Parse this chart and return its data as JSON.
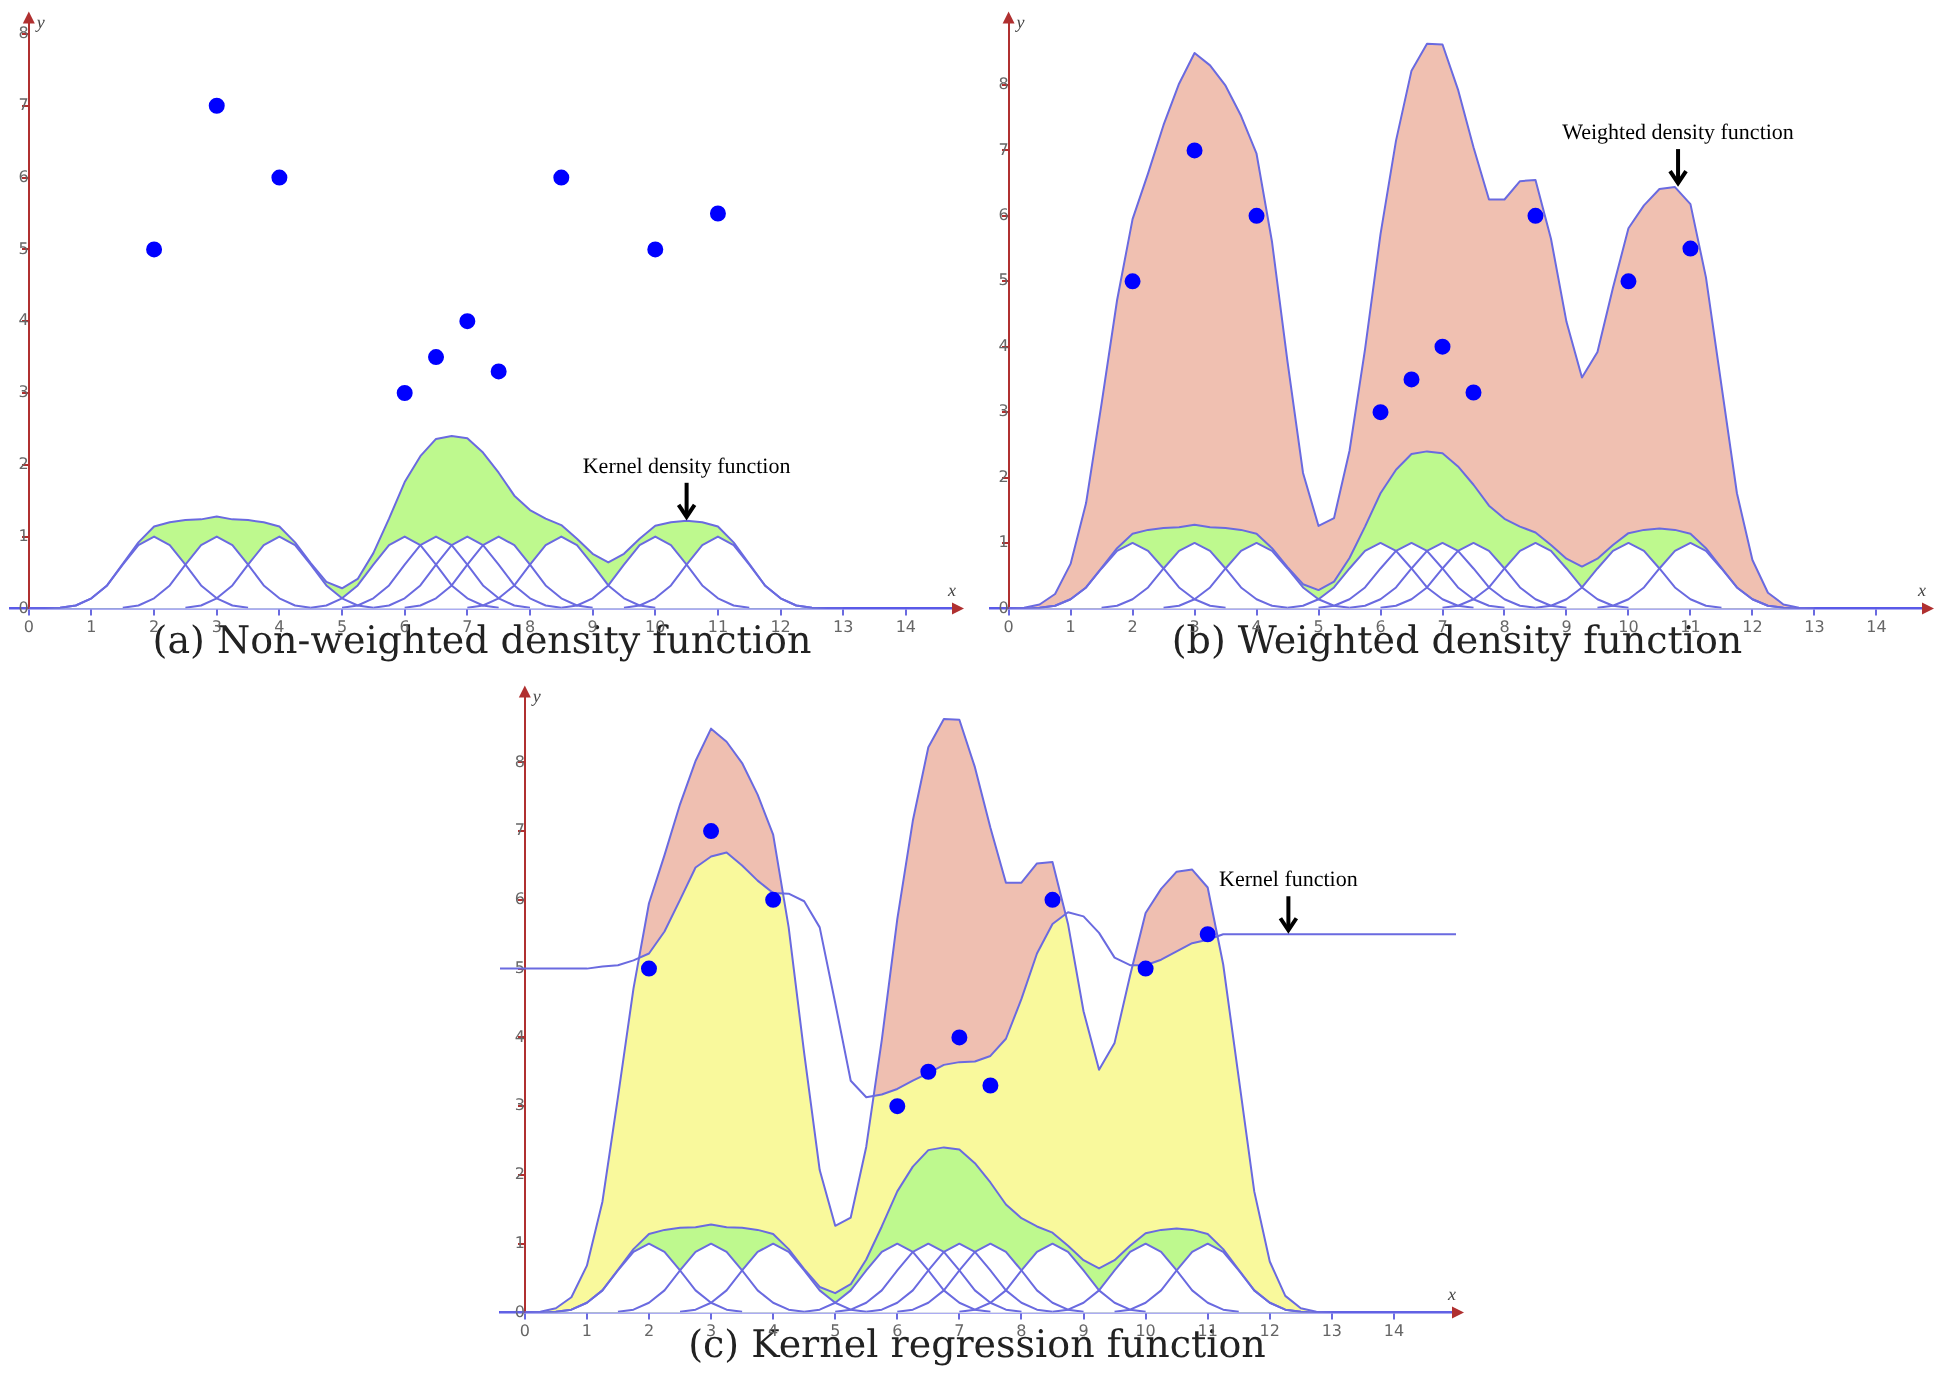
{
  "chart_data": [
    {
      "type": "line",
      "title": "(a) Non-weighted density function",
      "xlabel": "x",
      "ylabel": "y",
      "xlim": [
        -0.3,
        14.8
      ],
      "ylim": [
        0,
        8.2
      ],
      "xticks": [
        0,
        1,
        2,
        3,
        4,
        5,
        6,
        7,
        8,
        9,
        10,
        11,
        12,
        13,
        14
      ],
      "yticks": [
        0,
        1,
        2,
        3,
        4,
        5,
        6,
        7,
        8
      ],
      "grid": false,
      "legend": false,
      "annotations": [
        {
          "text": "Kernel density function",
          "x": 10.5,
          "y": 1.22
        }
      ],
      "series": [
        {
          "type": "scatter",
          "color": "#0000ff",
          "marker": "circle",
          "x": [
            2,
            3,
            4,
            6,
            6.5,
            7,
            7.5,
            8.5,
            10,
            11
          ],
          "values": [
            5,
            7,
            6,
            3,
            3.5,
            4,
            3.3,
            6,
            5,
            5.5
          ]
        },
        {
          "type": "area",
          "color": "#ffffff",
          "x": [
            0.5,
            0.75,
            1,
            1.25,
            1.5,
            1.75,
            2,
            2.25,
            2.5,
            2.75,
            3,
            3.25,
            3.5
          ],
          "values": [
            0.01,
            0.04,
            0.14,
            0.32,
            0.61,
            0.88,
            1,
            0.88,
            0.61,
            0.32,
            0.14,
            0.04,
            0.01
          ]
        },
        {
          "type": "area",
          "color": "#ffffff",
          "x": [
            1.5,
            1.75,
            2,
            2.25,
            2.5,
            2.75,
            3,
            3.25,
            3.5,
            3.75,
            4,
            4.25,
            4.5
          ],
          "values": [
            0.01,
            0.04,
            0.14,
            0.32,
            0.61,
            0.88,
            1,
            0.88,
            0.61,
            0.32,
            0.14,
            0.04,
            0.01
          ]
        },
        {
          "type": "area",
          "color": "#ffffff",
          "x": [
            2.5,
            2.75,
            3,
            3.25,
            3.5,
            3.75,
            4,
            4.25,
            4.5,
            4.75,
            5,
            5.25,
            5.5
          ],
          "values": [
            0.01,
            0.04,
            0.14,
            0.32,
            0.61,
            0.88,
            1,
            0.88,
            0.61,
            0.32,
            0.14,
            0.04,
            0.01
          ]
        },
        {
          "type": "area",
          "color": "#ffffff",
          "x": [
            4.5,
            4.75,
            5,
            5.25,
            5.5,
            5.75,
            6,
            6.25,
            6.5,
            6.75,
            7,
            7.25,
            7.5
          ],
          "values": [
            0.01,
            0.04,
            0.14,
            0.32,
            0.61,
            0.88,
            1,
            0.88,
            0.61,
            0.32,
            0.14,
            0.04,
            0.01
          ]
        },
        {
          "type": "area",
          "color": "#ffffff",
          "x": [
            5,
            5.25,
            5.5,
            5.75,
            6,
            6.25,
            6.5,
            6.75,
            7,
            7.25,
            7.5,
            7.75,
            8
          ],
          "values": [
            0.01,
            0.04,
            0.14,
            0.32,
            0.61,
            0.88,
            1,
            0.88,
            0.61,
            0.32,
            0.14,
            0.04,
            0.01
          ]
        },
        {
          "type": "area",
          "color": "#ffffff",
          "x": [
            5.5,
            5.75,
            6,
            6.25,
            6.5,
            6.75,
            7,
            7.25,
            7.5,
            7.75,
            8,
            8.25,
            8.5
          ],
          "values": [
            0.01,
            0.04,
            0.14,
            0.32,
            0.61,
            0.88,
            1,
            0.88,
            0.61,
            0.32,
            0.14,
            0.04,
            0.01
          ]
        },
        {
          "type": "area",
          "color": "#ffffff",
          "x": [
            6,
            6.25,
            6.5,
            6.75,
            7,
            7.25,
            7.5,
            7.75,
            8,
            8.25,
            8.5,
            8.75,
            9
          ],
          "values": [
            0.01,
            0.04,
            0.14,
            0.32,
            0.61,
            0.88,
            1,
            0.88,
            0.61,
            0.32,
            0.14,
            0.04,
            0.01
          ]
        },
        {
          "type": "area",
          "color": "#ffffff",
          "x": [
            7,
            7.25,
            7.5,
            7.75,
            8,
            8.25,
            8.5,
            8.75,
            9,
            9.25,
            9.5,
            9.75,
            10
          ],
          "values": [
            0.01,
            0.04,
            0.14,
            0.32,
            0.61,
            0.88,
            1,
            0.88,
            0.61,
            0.32,
            0.14,
            0.04,
            0.01
          ]
        },
        {
          "type": "area",
          "color": "#ffffff",
          "x": [
            8.5,
            8.75,
            9,
            9.25,
            9.5,
            9.75,
            10,
            10.25,
            10.5,
            10.75,
            11,
            11.25,
            11.5
          ],
          "values": [
            0.01,
            0.04,
            0.14,
            0.32,
            0.61,
            0.88,
            1,
            0.88,
            0.61,
            0.32,
            0.14,
            0.04,
            0.01
          ]
        },
        {
          "type": "area",
          "color": "#ffffff",
          "x": [
            9.5,
            9.75,
            10,
            10.25,
            10.5,
            10.75,
            11,
            11.25,
            11.5,
            11.75,
            12,
            12.25,
            12.5
          ],
          "values": [
            0.01,
            0.04,
            0.14,
            0.32,
            0.61,
            0.88,
            1,
            0.88,
            0.61,
            0.32,
            0.14,
            0.04,
            0.01
          ]
        },
        {
          "type": "area",
          "color": "#bef98e",
          "x": [
            0,
            0.25,
            0.5,
            0.75,
            1,
            1.25,
            1.5,
            1.75,
            2,
            2.25,
            2.5,
            2.75,
            3,
            3.25,
            3.5,
            3.75,
            4,
            4.25,
            4.5,
            4.75,
            5,
            5.25,
            5.5,
            5.75,
            6,
            6.25,
            6.5,
            6.75,
            7,
            7.25,
            7.5,
            7.75,
            8,
            8.25,
            8.5,
            8.75,
            9,
            9.25,
            9.5,
            9.75,
            10,
            10.25,
            10.5,
            10.75,
            11,
            11.25,
            11.5,
            11.75,
            12,
            12.25,
            12.5,
            12.75,
            13
          ],
          "values": [
            0,
            0,
            0.01,
            0.04,
            0.14,
            0.32,
            0.62,
            0.92,
            1.14,
            1.2,
            1.23,
            1.24,
            1.28,
            1.24,
            1.23,
            1.2,
            1.14,
            0.92,
            0.63,
            0.37,
            0.28,
            0.41,
            0.77,
            1.25,
            1.76,
            2.12,
            2.36,
            2.4,
            2.37,
            2.17,
            1.89,
            1.57,
            1.37,
            1.25,
            1.16,
            0.97,
            0.76,
            0.64,
            0.76,
            0.97,
            1.15,
            1.2,
            1.22,
            1.2,
            1.14,
            0.92,
            0.62,
            0.32,
            0.14,
            0.04,
            0.01,
            0,
            0
          ]
        }
      ]
    },
    {
      "type": "line",
      "title": "(b) Weighted density function",
      "xlabel": "x",
      "ylabel": "y",
      "xlim": [
        -0.3,
        14.8
      ],
      "ylim": [
        0,
        9
      ],
      "xticks": [
        0,
        1,
        2,
        3,
        4,
        5,
        6,
        7,
        8,
        9,
        10,
        11,
        12,
        13,
        14
      ],
      "yticks": [
        0,
        1,
        2,
        3,
        4,
        5,
        6,
        7,
        8
      ],
      "grid": false,
      "legend": false,
      "annotations": [
        {
          "text": "Weighted density function",
          "x": 10.8,
          "y": 6.44
        }
      ],
      "series": [
        {
          "type": "scatter",
          "color": "#0000ff",
          "marker": "circle",
          "x": [
            2,
            3,
            4,
            6,
            6.5,
            7,
            7.5,
            8.5,
            10,
            11
          ],
          "values": [
            5,
            7,
            6,
            3,
            3.5,
            4,
            3.3,
            6,
            5,
            5.5
          ]
        },
        {
          "type": "area",
          "color": "#ffffff",
          "x": [
            0.5,
            0.75,
            1,
            1.25,
            1.5,
            1.75,
            2,
            2.25,
            2.5,
            2.75,
            3,
            3.25,
            3.5
          ],
          "values": [
            0.01,
            0.04,
            0.14,
            0.32,
            0.61,
            0.88,
            1,
            0.88,
            0.61,
            0.32,
            0.14,
            0.04,
            0.01
          ]
        },
        {
          "type": "area",
          "color": "#ffffff",
          "x": [
            1.5,
            1.75,
            2,
            2.25,
            2.5,
            2.75,
            3,
            3.25,
            3.5,
            3.75,
            4,
            4.25,
            4.5
          ],
          "values": [
            0.01,
            0.04,
            0.14,
            0.32,
            0.61,
            0.88,
            1,
            0.88,
            0.61,
            0.32,
            0.14,
            0.04,
            0.01
          ]
        },
        {
          "type": "area",
          "color": "#ffffff",
          "x": [
            2.5,
            2.75,
            3,
            3.25,
            3.5,
            3.75,
            4,
            4.25,
            4.5,
            4.75,
            5,
            5.25,
            5.5
          ],
          "values": [
            0.01,
            0.04,
            0.14,
            0.32,
            0.61,
            0.88,
            1,
            0.88,
            0.61,
            0.32,
            0.14,
            0.04,
            0.01
          ]
        },
        {
          "type": "area",
          "color": "#ffffff",
          "x": [
            4.5,
            4.75,
            5,
            5.25,
            5.5,
            5.75,
            6,
            6.25,
            6.5,
            6.75,
            7,
            7.25,
            7.5
          ],
          "values": [
            0.01,
            0.04,
            0.14,
            0.32,
            0.61,
            0.88,
            1,
            0.88,
            0.61,
            0.32,
            0.14,
            0.04,
            0.01
          ]
        },
        {
          "type": "area",
          "color": "#ffffff",
          "x": [
            5,
            5.25,
            5.5,
            5.75,
            6,
            6.25,
            6.5,
            6.75,
            7,
            7.25,
            7.5,
            7.75,
            8
          ],
          "values": [
            0.01,
            0.04,
            0.14,
            0.32,
            0.61,
            0.88,
            1,
            0.88,
            0.61,
            0.32,
            0.14,
            0.04,
            0.01
          ]
        },
        {
          "type": "area",
          "color": "#ffffff",
          "x": [
            5.5,
            5.75,
            6,
            6.25,
            6.5,
            6.75,
            7,
            7.25,
            7.5,
            7.75,
            8,
            8.25,
            8.5
          ],
          "values": [
            0.01,
            0.04,
            0.14,
            0.32,
            0.61,
            0.88,
            1,
            0.88,
            0.61,
            0.32,
            0.14,
            0.04,
            0.01
          ]
        },
        {
          "type": "area",
          "color": "#ffffff",
          "x": [
            6,
            6.25,
            6.5,
            6.75,
            7,
            7.25,
            7.5,
            7.75,
            8,
            8.25,
            8.5,
            8.75,
            9
          ],
          "values": [
            0.01,
            0.04,
            0.14,
            0.32,
            0.61,
            0.88,
            1,
            0.88,
            0.61,
            0.32,
            0.14,
            0.04,
            0.01
          ]
        },
        {
          "type": "area",
          "color": "#ffffff",
          "x": [
            7,
            7.25,
            7.5,
            7.75,
            8,
            8.25,
            8.5,
            8.75,
            9,
            9.25,
            9.5,
            9.75,
            10
          ],
          "values": [
            0.01,
            0.04,
            0.14,
            0.32,
            0.61,
            0.88,
            1,
            0.88,
            0.61,
            0.32,
            0.14,
            0.04,
            0.01
          ]
        },
        {
          "type": "area",
          "color": "#ffffff",
          "x": [
            8.5,
            8.75,
            9,
            9.25,
            9.5,
            9.75,
            10,
            10.25,
            10.5,
            10.75,
            11,
            11.25,
            11.5
          ],
          "values": [
            0.01,
            0.04,
            0.14,
            0.32,
            0.61,
            0.88,
            1,
            0.88,
            0.61,
            0.32,
            0.14,
            0.04,
            0.01
          ]
        },
        {
          "type": "area",
          "color": "#ffffff",
          "x": [
            9.5,
            9.75,
            10,
            10.25,
            10.5,
            10.75,
            11,
            11.25,
            11.5,
            11.75,
            12,
            12.25,
            12.5
          ],
          "values": [
            0.01,
            0.04,
            0.14,
            0.32,
            0.61,
            0.88,
            1,
            0.88,
            0.61,
            0.32,
            0.14,
            0.04,
            0.01
          ]
        },
        {
          "type": "area",
          "color": "#bef98e",
          "x": [
            0,
            0.25,
            0.5,
            0.75,
            1,
            1.25,
            1.5,
            1.75,
            2,
            2.25,
            2.5,
            2.75,
            3,
            3.25,
            3.5,
            3.75,
            4,
            4.25,
            4.5,
            4.75,
            5,
            5.25,
            5.5,
            5.75,
            6,
            6.25,
            6.5,
            6.75,
            7,
            7.25,
            7.5,
            7.75,
            8,
            8.25,
            8.5,
            8.75,
            9,
            9.25,
            9.5,
            9.75,
            10,
            10.25,
            10.5,
            10.75,
            11,
            11.25,
            11.5,
            11.75,
            12,
            12.25,
            12.5,
            12.75,
            13
          ],
          "values": [
            0,
            0,
            0.01,
            0.04,
            0.14,
            0.32,
            0.62,
            0.92,
            1.14,
            1.2,
            1.23,
            1.24,
            1.28,
            1.24,
            1.23,
            1.2,
            1.14,
            0.92,
            0.63,
            0.37,
            0.28,
            0.41,
            0.77,
            1.25,
            1.76,
            2.12,
            2.36,
            2.4,
            2.37,
            2.17,
            1.89,
            1.57,
            1.37,
            1.25,
            1.16,
            0.97,
            0.76,
            0.64,
            0.76,
            0.97,
            1.15,
            1.2,
            1.22,
            1.2,
            1.14,
            0.92,
            0.62,
            0.32,
            0.14,
            0.04,
            0.01,
            0,
            0
          ]
        },
        {
          "type": "area",
          "color": "#f0c0b1",
          "x": [
            0,
            0.25,
            0.5,
            0.75,
            1,
            1.25,
            1.5,
            1.75,
            2,
            2.25,
            2.5,
            2.75,
            3,
            3.25,
            3.5,
            3.75,
            4,
            4.25,
            4.5,
            4.75,
            5,
            5.25,
            5.5,
            5.75,
            6,
            6.25,
            6.5,
            6.75,
            7,
            7.25,
            7.5,
            7.75,
            8,
            8.25,
            8.5,
            8.75,
            9,
            9.25,
            9.5,
            9.75,
            10,
            10.25,
            10.5,
            10.75,
            11,
            11.25,
            11.5,
            11.75,
            12,
            12.25,
            12.5,
            12.75,
            13
          ],
          "values": [
            0,
            0.01,
            0.06,
            0.22,
            0.68,
            1.61,
            3.13,
            4.71,
            5.95,
            6.65,
            7.39,
            8.02,
            8.49,
            8.3,
            7.99,
            7.53,
            6.95,
            5.6,
            3.77,
            2.07,
            1.26,
            1.38,
            2.41,
            3.96,
            5.72,
            7.15,
            8.22,
            8.63,
            8.62,
            7.93,
            7.05,
            6.25,
            6.25,
            6.53,
            6.55,
            5.65,
            4.38,
            3.53,
            3.92,
            4.9,
            5.81,
            6.16,
            6.41,
            6.44,
            6.18,
            5.06,
            3.41,
            1.76,
            0.74,
            0.24,
            0.06,
            0.01,
            0
          ]
        }
      ]
    },
    {
      "type": "line",
      "title": "(c) Kernel regression function",
      "xlabel": "x",
      "ylabel": "y",
      "xlim": [
        -0.4,
        15
      ],
      "ylim": [
        0,
        9
      ],
      "xticks": [
        0,
        1,
        2,
        3,
        4,
        5,
        6,
        7,
        8,
        9,
        10,
        11,
        12,
        13,
        14
      ],
      "yticks": [
        0,
        1,
        2,
        3,
        4,
        5,
        6,
        7,
        8
      ],
      "grid": false,
      "legend": false,
      "annotations": [
        {
          "text": "Kernel function",
          "x": 12.3,
          "y": 5.5
        }
      ],
      "series": [
        {
          "type": "scatter",
          "color": "#0000ff",
          "marker": "circle",
          "x": [
            2,
            3,
            4,
            6,
            6.5,
            7,
            7.5,
            8.5,
            10,
            11
          ],
          "values": [
            5,
            7,
            6,
            3,
            3.5,
            4,
            3.3,
            6,
            5,
            5.5
          ]
        },
        {
          "type": "area",
          "color": "#ffffff",
          "x": [
            0.5,
            0.75,
            1,
            1.25,
            1.5,
            1.75,
            2,
            2.25,
            2.5,
            2.75,
            3,
            3.25,
            3.5
          ],
          "values": [
            0.01,
            0.04,
            0.14,
            0.32,
            0.61,
            0.88,
            1,
            0.88,
            0.61,
            0.32,
            0.14,
            0.04,
            0.01
          ]
        },
        {
          "type": "area",
          "color": "#ffffff",
          "x": [
            1.5,
            1.75,
            2,
            2.25,
            2.5,
            2.75,
            3,
            3.25,
            3.5,
            3.75,
            4,
            4.25,
            4.5
          ],
          "values": [
            0.01,
            0.04,
            0.14,
            0.32,
            0.61,
            0.88,
            1,
            0.88,
            0.61,
            0.32,
            0.14,
            0.04,
            0.01
          ]
        },
        {
          "type": "area",
          "color": "#ffffff",
          "x": [
            2.5,
            2.75,
            3,
            3.25,
            3.5,
            3.75,
            4,
            4.25,
            4.5,
            4.75,
            5,
            5.25,
            5.5
          ],
          "values": [
            0.01,
            0.04,
            0.14,
            0.32,
            0.61,
            0.88,
            1,
            0.88,
            0.61,
            0.32,
            0.14,
            0.04,
            0.01
          ]
        },
        {
          "type": "area",
          "color": "#ffffff",
          "x": [
            4.5,
            4.75,
            5,
            5.25,
            5.5,
            5.75,
            6,
            6.25,
            6.5,
            6.75,
            7,
            7.25,
            7.5
          ],
          "values": [
            0.01,
            0.04,
            0.14,
            0.32,
            0.61,
            0.88,
            1,
            0.88,
            0.61,
            0.32,
            0.14,
            0.04,
            0.01
          ]
        },
        {
          "type": "area",
          "color": "#ffffff",
          "x": [
            5,
            5.25,
            5.5,
            5.75,
            6,
            6.25,
            6.5,
            6.75,
            7,
            7.25,
            7.5,
            7.75,
            8
          ],
          "values": [
            0.01,
            0.04,
            0.14,
            0.32,
            0.61,
            0.88,
            1,
            0.88,
            0.61,
            0.32,
            0.14,
            0.04,
            0.01
          ]
        },
        {
          "type": "area",
          "color": "#ffffff",
          "x": [
            5.5,
            5.75,
            6,
            6.25,
            6.5,
            6.75,
            7,
            7.25,
            7.5,
            7.75,
            8,
            8.25,
            8.5
          ],
          "values": [
            0.01,
            0.04,
            0.14,
            0.32,
            0.61,
            0.88,
            1,
            0.88,
            0.61,
            0.32,
            0.14,
            0.04,
            0.01
          ]
        },
        {
          "type": "area",
          "color": "#ffffff",
          "x": [
            6,
            6.25,
            6.5,
            6.75,
            7,
            7.25,
            7.5,
            7.75,
            8,
            8.25,
            8.5,
            8.75,
            9
          ],
          "values": [
            0.01,
            0.04,
            0.14,
            0.32,
            0.61,
            0.88,
            1,
            0.88,
            0.61,
            0.32,
            0.14,
            0.04,
            0.01
          ]
        },
        {
          "type": "area",
          "color": "#ffffff",
          "x": [
            7,
            7.25,
            7.5,
            7.75,
            8,
            8.25,
            8.5,
            8.75,
            9,
            9.25,
            9.5,
            9.75,
            10
          ],
          "values": [
            0.01,
            0.04,
            0.14,
            0.32,
            0.61,
            0.88,
            1,
            0.88,
            0.61,
            0.32,
            0.14,
            0.04,
            0.01
          ]
        },
        {
          "type": "area",
          "color": "#ffffff",
          "x": [
            8.5,
            8.75,
            9,
            9.25,
            9.5,
            9.75,
            10,
            10.25,
            10.5,
            10.75,
            11,
            11.25,
            11.5
          ],
          "values": [
            0.01,
            0.04,
            0.14,
            0.32,
            0.61,
            0.88,
            1,
            0.88,
            0.61,
            0.32,
            0.14,
            0.04,
            0.01
          ]
        },
        {
          "type": "area",
          "color": "#ffffff",
          "x": [
            9.5,
            9.75,
            10,
            10.25,
            10.5,
            10.75,
            11,
            11.25,
            11.5,
            11.75,
            12,
            12.25,
            12.5
          ],
          "values": [
            0.01,
            0.04,
            0.14,
            0.32,
            0.61,
            0.88,
            1,
            0.88,
            0.61,
            0.32,
            0.14,
            0.04,
            0.01
          ]
        },
        {
          "type": "area",
          "color": "#bef98e",
          "x": [
            0,
            0.25,
            0.5,
            0.75,
            1,
            1.25,
            1.5,
            1.75,
            2,
            2.25,
            2.5,
            2.75,
            3,
            3.25,
            3.5,
            3.75,
            4,
            4.25,
            4.5,
            4.75,
            5,
            5.25,
            5.5,
            5.75,
            6,
            6.25,
            6.5,
            6.75,
            7,
            7.25,
            7.5,
            7.75,
            8,
            8.25,
            8.5,
            8.75,
            9,
            9.25,
            9.5,
            9.75,
            10,
            10.25,
            10.5,
            10.75,
            11,
            11.25,
            11.5,
            11.75,
            12,
            12.25,
            12.5,
            12.75,
            13
          ],
          "values": [
            0,
            0,
            0.01,
            0.04,
            0.14,
            0.32,
            0.62,
            0.92,
            1.14,
            1.2,
            1.23,
            1.24,
            1.28,
            1.24,
            1.23,
            1.2,
            1.14,
            0.92,
            0.63,
            0.37,
            0.28,
            0.41,
            0.77,
            1.25,
            1.76,
            2.12,
            2.36,
            2.4,
            2.37,
            2.17,
            1.89,
            1.57,
            1.37,
            1.25,
            1.16,
            0.97,
            0.76,
            0.64,
            0.76,
            0.97,
            1.15,
            1.2,
            1.22,
            1.2,
            1.14,
            0.92,
            0.62,
            0.32,
            0.14,
            0.04,
            0.01,
            0,
            0
          ]
        },
        {
          "type": "line",
          "color": "#6a6ae0",
          "x": [
            -0.4,
            0,
            0.25,
            0.5,
            0.75,
            1,
            1.25,
            1.5,
            1.75,
            2,
            2.25,
            2.5,
            2.75,
            3,
            3.25,
            3.5,
            3.75,
            4,
            4.25,
            4.5,
            4.75,
            5,
            5.25,
            5.5,
            5.75,
            6,
            6.25,
            6.5,
            6.75,
            7,
            7.25,
            7.5,
            7.75,
            8,
            8.25,
            8.5,
            8.75,
            9,
            9.25,
            9.5,
            9.75,
            10,
            10.25,
            10.5,
            10.75,
            11,
            11.25,
            11.5,
            11.75,
            12,
            12.25,
            12.5,
            12.75,
            13,
            13.5,
            14,
            14.5,
            15
          ],
          "values": [
            5,
            5,
            5,
            5,
            5,
            5,
            5.03,
            5.05,
            5.12,
            5.22,
            5.54,
            6,
            6.47,
            6.63,
            6.69,
            6.5,
            6.28,
            6.1,
            6.09,
            5.98,
            5.6,
            4.5,
            3.37,
            3.13,
            3.17,
            3.25,
            3.37,
            3.48,
            3.6,
            3.64,
            3.65,
            3.73,
            3.98,
            4.56,
            5.22,
            5.65,
            5.82,
            5.76,
            5.52,
            5.16,
            5.05,
            5.05,
            5.13,
            5.25,
            5.37,
            5.42,
            5.5,
            5.5,
            5.5,
            5.5,
            5.5,
            5.5,
            5.5,
            5.5,
            5.5,
            5.5,
            5.5,
            5.5
          ]
        },
        {
          "type": "area",
          "color": "#f9f99c",
          "x": [
            -0.4,
            0,
            0.25,
            0.5,
            0.75,
            1,
            1.25,
            1.5,
            1.75,
            2,
            2.25,
            2.5,
            2.75,
            3,
            3.25,
            3.5,
            3.75,
            4,
            4.25,
            4.5,
            4.75,
            5,
            5.25,
            5.5,
            5.75,
            6,
            6.25,
            6.5,
            6.75,
            7,
            7.25,
            7.5,
            7.75,
            8,
            8.25,
            8.5,
            8.75,
            9,
            9.25,
            9.5,
            9.75,
            10,
            10.25,
            10.5,
            10.75,
            11,
            11.25,
            11.5,
            11.75,
            12,
            12.25,
            12.5,
            12.75,
            13,
            13.5,
            14,
            14.5,
            15
          ],
          "values": [
            0,
            0,
            0.01,
            0.06,
            0.22,
            0.68,
            1.61,
            3.13,
            4.71,
            5.95,
            6.65,
            7.39,
            8.02,
            8.49,
            8.3,
            7.99,
            7.53,
            6.95,
            5.6,
            3.77,
            2.07,
            1.26,
            1.38,
            2.41,
            3.96,
            5.72,
            7.15,
            8.22,
            8.63,
            8.62,
            7.93,
            7.05,
            6.25,
            6.25,
            6.53,
            6.55,
            5.65,
            4.38,
            3.53,
            3.92,
            4.9,
            5.81,
            6.16,
            6.41,
            6.44,
            6.18,
            5.06,
            3.41,
            1.76,
            0.74,
            0.24,
            0.06,
            0.01,
            0,
            0,
            0,
            0,
            0
          ]
        }
      ]
    }
  ]
}
